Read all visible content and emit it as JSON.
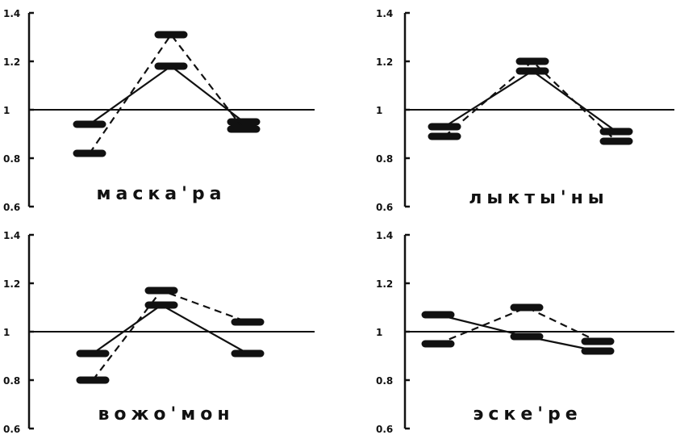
{
  "chart_data": [
    {
      "type": "line",
      "title": "маска'ра",
      "y_ticks": [
        "1.4",
        "1.2",
        "1",
        "0.8",
        "0.6"
      ],
      "ylim": [
        0.6,
        1.4
      ],
      "reference_line": 1,
      "series": [
        {
          "style": "solid",
          "values": [
            0.94,
            1.18,
            0.95
          ]
        },
        {
          "style": "dashed",
          "values": [
            0.82,
            1.31,
            0.92
          ]
        }
      ]
    },
    {
      "type": "line",
      "title": "лыкты'ны",
      "y_ticks": [
        "1.4",
        "1.2",
        "1",
        "0.8",
        "0.6"
      ],
      "ylim": [
        0.6,
        1.4
      ],
      "reference_line": 1,
      "series": [
        {
          "style": "solid",
          "values": [
            0.93,
            1.16,
            0.91
          ]
        },
        {
          "style": "dashed",
          "values": [
            0.89,
            1.2,
            0.87
          ]
        }
      ]
    },
    {
      "type": "line",
      "title": "вожо'мон",
      "y_ticks": [
        "1.4",
        "1.2",
        "1",
        "0.8",
        "0.6"
      ],
      "ylim": [
        0.6,
        1.4
      ],
      "reference_line": 1,
      "series": [
        {
          "style": "solid",
          "values": [
            0.91,
            1.11,
            0.91
          ]
        },
        {
          "style": "dashed",
          "values": [
            0.8,
            1.17,
            1.04
          ]
        }
      ]
    },
    {
      "type": "line",
      "title": "эске'ре",
      "y_ticks": [
        "1.4",
        "1.2",
        "1",
        "0.8",
        "0.6"
      ],
      "ylim": [
        0.6,
        1.4
      ],
      "reference_line": 1,
      "series": [
        {
          "style": "solid",
          "values": [
            1.07,
            0.98,
            0.92
          ]
        },
        {
          "style": "dashed",
          "values": [
            0.95,
            1.1,
            0.96
          ]
        }
      ]
    }
  ]
}
